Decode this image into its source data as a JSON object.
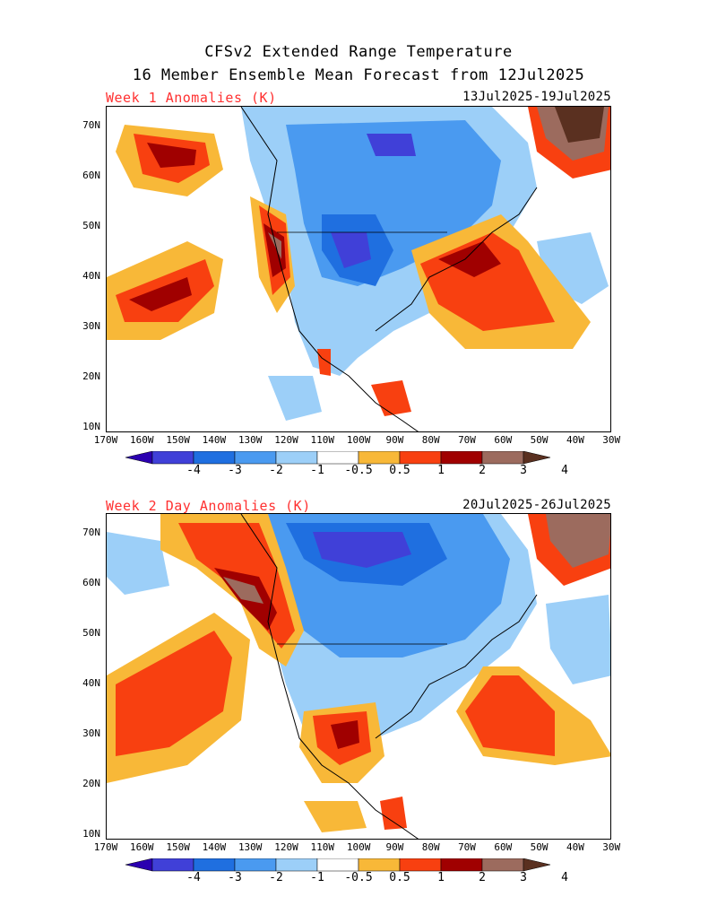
{
  "title_line1": "CFSv2 Extended Range Temperature",
  "title_line2": "16 Member Ensemble Mean Forecast from 12Jul2025",
  "panels": [
    {
      "label": "Week 1 Anomalies (K)",
      "dates": "13Jul2025-19Jul2025"
    },
    {
      "label": "Week 2 Day Anomalies (K)",
      "dates": "20Jul2025-26Jul2025"
    }
  ],
  "lat_labels": [
    "70N",
    "60N",
    "50N",
    "40N",
    "30N",
    "20N",
    "10N"
  ],
  "lon_labels": [
    "170W",
    "160W",
    "150W",
    "140W",
    "130W",
    "120W",
    "110W",
    "100W",
    "90W",
    "80W",
    "70W",
    "60W",
    "50W",
    "40W",
    "30W"
  ],
  "colorbar": {
    "labels": [
      "-4",
      "-3",
      "-2",
      "-1",
      "-0.5",
      "0.5",
      "1",
      "2",
      "3",
      "4"
    ],
    "colors": [
      "#2b00b0",
      "#4040d8",
      "#1f6fe0",
      "#4a9af0",
      "#9ccff8",
      "#ffffff",
      "#f8b838",
      "#f84010",
      "#a00000",
      "#9c6b5e",
      "#5a3020"
    ]
  },
  "colors": {
    "warm1": "#f8b838",
    "warm2": "#f84010",
    "warm3": "#a00000",
    "warm4": "#9c6b5e",
    "warm5": "#5a3020",
    "cool1": "#9ccff8",
    "cool2": "#4a9af0",
    "cool3": "#1f6fe0",
    "cool4": "#4040d8",
    "cool5": "#2b00b0"
  }
}
